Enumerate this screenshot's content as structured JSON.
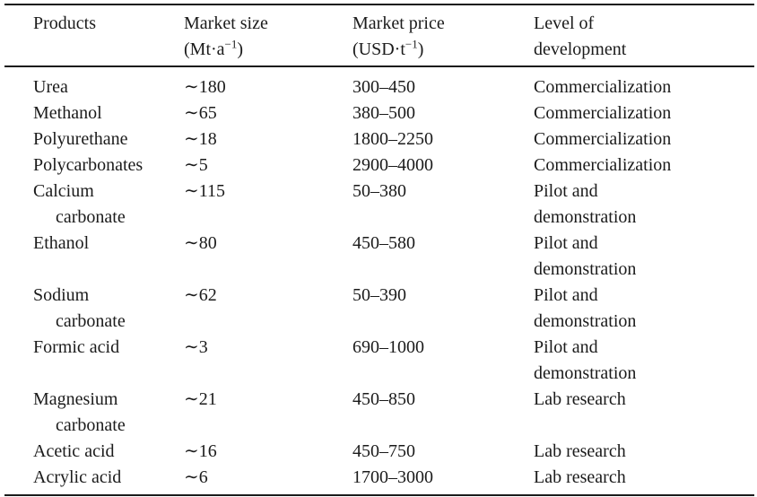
{
  "table": {
    "columns": [
      {
        "line1": "Products"
      },
      {
        "line1": "Market size",
        "unit_prefix": "(Mt·a",
        "unit_sup": "−1",
        "unit_suffix": ")"
      },
      {
        "line1": "Market price",
        "unit_prefix": "(USD·t",
        "unit_sup": "−1",
        "unit_suffix": ")"
      },
      {
        "line1": "Level of",
        "line2": "development"
      }
    ],
    "rows": [
      {
        "product": [
          "Urea"
        ],
        "market_size": "∼180",
        "market_price": "300–450",
        "development": [
          "Commercialization"
        ]
      },
      {
        "product": [
          "Methanol"
        ],
        "market_size": "∼65",
        "market_price": "380–500",
        "development": [
          "Commercialization"
        ]
      },
      {
        "product": [
          "Polyurethane"
        ],
        "market_size": "∼18",
        "market_price": "1800–2250",
        "development": [
          "Commercialization"
        ]
      },
      {
        "product": [
          "Polycarbonates"
        ],
        "market_size": "∼5",
        "market_price": "2900–4000",
        "development": [
          "Commercialization"
        ]
      },
      {
        "product": [
          "Calcium",
          "carbonate"
        ],
        "market_size": "∼115",
        "market_price": "50–380",
        "development": [
          "Pilot and",
          "demonstration"
        ]
      },
      {
        "product": [
          "Ethanol"
        ],
        "market_size": "∼80",
        "market_price": "450–580",
        "development": [
          "Pilot and",
          "demonstration"
        ]
      },
      {
        "product": [
          "Sodium",
          "carbonate"
        ],
        "market_size": "∼62",
        "market_price": "50–390",
        "development": [
          "Pilot and",
          "demonstration"
        ]
      },
      {
        "product": [
          "Formic acid"
        ],
        "market_size": "∼3",
        "market_price": "690–1000",
        "development": [
          "Pilot and",
          "demonstration"
        ]
      },
      {
        "product": [
          "Magnesium",
          "carbonate"
        ],
        "market_size": "∼21",
        "market_price": "450–850",
        "development": [
          "Lab research"
        ]
      },
      {
        "product": [
          "Acetic acid"
        ],
        "market_size": "∼16",
        "market_price": "450–750",
        "development": [
          "Lab research"
        ]
      },
      {
        "product": [
          "Acrylic acid"
        ],
        "market_size": "∼6",
        "market_price": "1700–3000",
        "development": [
          "Lab research"
        ]
      }
    ]
  }
}
